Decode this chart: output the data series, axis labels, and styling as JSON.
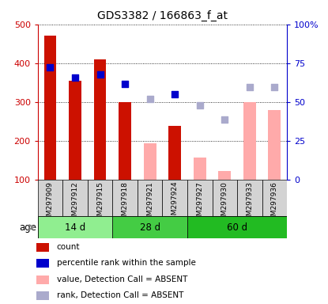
{
  "title": "GDS3382 / 166863_f_at",
  "samples": [
    "GSM297909",
    "GSM297912",
    "GSM297915",
    "GSM297918",
    "GSM297921",
    "GSM297924",
    "GSM297927",
    "GSM297930",
    "GSM297933",
    "GSM297936"
  ],
  "age_groups": [
    {
      "label": "14 d",
      "samples_count": 3,
      "color": "#90ee90"
    },
    {
      "label": "28 d",
      "samples_count": 3,
      "color": "#44cc44"
    },
    {
      "label": "60 d",
      "samples_count": 4,
      "color": "#22bb22"
    }
  ],
  "count_values": [
    470,
    355,
    410,
    300,
    null,
    237,
    null,
    null,
    null,
    null
  ],
  "count_absent": [
    null,
    null,
    null,
    null,
    194,
    null,
    156,
    122,
    300,
    278
  ],
  "rank_present": [
    390,
    362,
    370,
    346,
    null,
    320,
    null,
    null,
    null,
    null
  ],
  "rank_absent": [
    null,
    null,
    null,
    null,
    307,
    null,
    292,
    255,
    338,
    338
  ],
  "ylim_left": [
    100,
    500
  ],
  "ylim_right": [
    0,
    100
  ],
  "yticks_left": [
    100,
    200,
    300,
    400,
    500
  ],
  "yticks_right": [
    0,
    25,
    50,
    75,
    100
  ],
  "ytick_right_labels": [
    "0",
    "25",
    "50",
    "75",
    "100%"
  ],
  "left_color": "#cc0000",
  "right_color": "#0000cc",
  "bar_color_present": "#cc1100",
  "bar_color_absent": "#ffaaaa",
  "dot_color_present": "#0000cc",
  "dot_color_absent": "#aaaacc",
  "bar_bottom": 100,
  "legend_items": [
    {
      "color": "#cc1100",
      "label": "count"
    },
    {
      "color": "#0000cc",
      "label": "percentile rank within the sample"
    },
    {
      "color": "#ffaaaa",
      "label": "value, Detection Call = ABSENT"
    },
    {
      "color": "#aaaacc",
      "label": "rank, Detection Call = ABSENT"
    }
  ],
  "age_label": "age",
  "sample_box_color": "#d3d3d3",
  "plot_bg": "#ffffff",
  "fig_bg": "#ffffff"
}
